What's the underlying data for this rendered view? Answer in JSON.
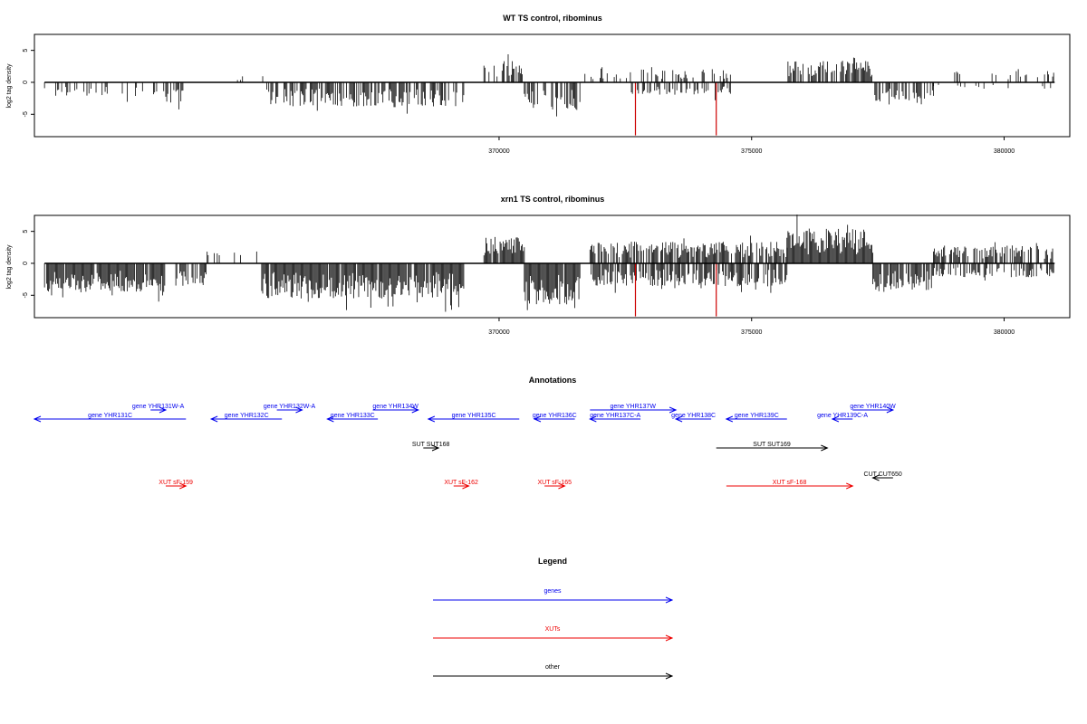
{
  "chart_data": [
    {
      "type": "bar",
      "title": "WT TS control, ribominus",
      "ylabel": "log2 tag density",
      "xlabel": "",
      "xlim": [
        360800,
        381300
      ],
      "ylim": [
        -8.5,
        7.5
      ],
      "x_ticks": [
        370000,
        375000,
        380000
      ],
      "x_tick_labels": [
        "370000",
        "375000",
        "380000"
      ],
      "y_ticks": [
        5,
        0,
        -5
      ],
      "y_tick_labels": [
        "5",
        "0",
        "-5"
      ],
      "baseline_range": [
        361000,
        381000
      ],
      "segments": [
        {
          "range": [
            361000,
            363400
          ],
          "sign": -1,
          "density": 0.35,
          "amplitude": 2.2
        },
        {
          "range": [
            363400,
            363800
          ],
          "sign": -1,
          "density": 0.5,
          "amplitude": 3.2
        },
        {
          "range": [
            364800,
            365400
          ],
          "sign": 1,
          "density": 0.2,
          "amplitude": 1.0
        },
        {
          "range": [
            365400,
            369300
          ],
          "sign": -1,
          "density": 0.55,
          "amplitude": 3.8
        },
        {
          "range": [
            369700,
            370500
          ],
          "sign": 1,
          "density": 0.6,
          "amplitude": 3.4
        },
        {
          "range": [
            370500,
            371600
          ],
          "sign": -1,
          "density": 0.6,
          "amplitude": 4.5
        },
        {
          "range": [
            371600,
            372000
          ],
          "sign": 1,
          "density": 0.3,
          "amplitude": 1.5
        },
        {
          "range": [
            372000,
            372600
          ],
          "sign": 1,
          "density": 0.45,
          "amplitude": 2.4
        },
        {
          "range": [
            372600,
            374600
          ],
          "sign": -1,
          "density": 0.35,
          "amplitude": 2.0
        },
        {
          "range": [
            372800,
            374600
          ],
          "sign": 1,
          "density": 0.35,
          "amplitude": 2.0
        },
        {
          "range": [
            375700,
            377400
          ],
          "sign": 1,
          "density": 0.7,
          "amplitude": 3.4
        },
        {
          "range": [
            377400,
            378600
          ],
          "sign": -1,
          "density": 0.5,
          "amplitude": 3.0
        },
        {
          "range": [
            378600,
            381000
          ],
          "sign": 1,
          "density": 0.15,
          "amplitude": 1.8
        },
        {
          "range": [
            378600,
            381000
          ],
          "sign": -1,
          "density": 0.1,
          "amplitude": 1.0
        }
      ],
      "highlight_bars": [
        {
          "x": 372700,
          "y": -8.3
        },
        {
          "x": 374300,
          "y": -8.3
        }
      ],
      "colors": {
        "bars": "#000000",
        "highlight": "#cc0000"
      }
    },
    {
      "type": "bar",
      "title": "xrn1 TS control, ribominus",
      "ylabel": "log2 tag density",
      "xlabel": "",
      "xlim": [
        360800,
        381300
      ],
      "ylim": [
        -8.5,
        7.5
      ],
      "x_ticks": [
        370000,
        375000,
        380000
      ],
      "x_tick_labels": [
        "370000",
        "375000",
        "380000"
      ],
      "y_ticks": [
        5,
        0,
        -5
      ],
      "y_tick_labels": [
        "5",
        "0",
        "-5"
      ],
      "baseline_range": [
        361000,
        381000
      ],
      "segments": [
        {
          "range": [
            361000,
            363400
          ],
          "sign": -1,
          "density": 0.95,
          "amplitude": 4.5
        },
        {
          "range": [
            363600,
            364200
          ],
          "sign": -1,
          "density": 0.7,
          "amplitude": 3.5
        },
        {
          "range": [
            364200,
            365300
          ],
          "sign": 1,
          "density": 0.2,
          "amplitude": 2.0
        },
        {
          "range": [
            365300,
            369300
          ],
          "sign": -1,
          "density": 0.95,
          "amplitude": 5.5
        },
        {
          "range": [
            369700,
            370500
          ],
          "sign": 1,
          "density": 0.95,
          "amplitude": 4.2
        },
        {
          "range": [
            370500,
            371600
          ],
          "sign": -1,
          "density": 0.98,
          "amplitude": 6.5
        },
        {
          "range": [
            371800,
            375700
          ],
          "sign": 1,
          "density": 0.75,
          "amplitude": 3.4
        },
        {
          "range": [
            371800,
            375700
          ],
          "sign": -1,
          "density": 0.75,
          "amplitude": 3.6
        },
        {
          "range": [
            375700,
            377400
          ],
          "sign": 1,
          "density": 0.98,
          "amplitude": 5.5
        },
        {
          "range": [
            377400,
            378600
          ],
          "sign": -1,
          "density": 0.85,
          "amplitude": 4.5
        },
        {
          "range": [
            378600,
            381000
          ],
          "sign": 1,
          "density": 0.6,
          "amplitude": 2.8
        },
        {
          "range": [
            378600,
            381000
          ],
          "sign": -1,
          "density": 0.5,
          "amplitude": 2.2
        }
      ],
      "highlight_bars": [
        {
          "x": 372700,
          "y": -8.3
        },
        {
          "x": 374300,
          "y": -8.3
        }
      ],
      "colors": {
        "bars": "#000000",
        "highlight": "#cc0000"
      }
    }
  ],
  "annotations": {
    "title": "Annotations",
    "xlim": [
      360800,
      381300
    ],
    "colors": {
      "genes": "#0000ee",
      "XUTs": "#ee0000",
      "other": "#000000"
    },
    "rows": [
      {
        "label": "gene YHR131C",
        "start": 360800,
        "end": 363800,
        "row": 2,
        "strand": "-",
        "category": "genes"
      },
      {
        "label": "gene YHR131W-A",
        "start": 363100,
        "end": 363400,
        "row": 1,
        "strand": "+",
        "category": "genes"
      },
      {
        "label": "gene YHR132C",
        "start": 364300,
        "end": 365700,
        "row": 2,
        "strand": "-",
        "category": "genes"
      },
      {
        "label": "gene YHR132W-A",
        "start": 365600,
        "end": 366100,
        "row": 1,
        "strand": "+",
        "category": "genes"
      },
      {
        "label": "gene YHR133C",
        "start": 366600,
        "end": 367600,
        "row": 2,
        "strand": "-",
        "category": "genes"
      },
      {
        "label": "gene YHR134W",
        "start": 367500,
        "end": 368400,
        "row": 1,
        "strand": "+",
        "category": "genes"
      },
      {
        "label": "gene YHR135C",
        "start": 368600,
        "end": 370400,
        "row": 2,
        "strand": "-",
        "category": "genes"
      },
      {
        "label": "gene YHR136C",
        "start": 370700,
        "end": 371500,
        "row": 2,
        "strand": "-",
        "category": "genes"
      },
      {
        "label": "gene YHR137W",
        "start": 371800,
        "end": 373500,
        "row": 1,
        "strand": "+",
        "category": "genes"
      },
      {
        "label": "gene YHR137C-A",
        "start": 371800,
        "end": 372800,
        "row": 2,
        "strand": "-",
        "category": "genes"
      },
      {
        "label": "gene YHR138C",
        "start": 373500,
        "end": 374200,
        "row": 2,
        "strand": "-",
        "category": "genes"
      },
      {
        "label": "gene YHR139C",
        "start": 374500,
        "end": 375700,
        "row": 2,
        "strand": "-",
        "category": "genes"
      },
      {
        "label": "gene YHR139C-A",
        "start": 376600,
        "end": 377000,
        "row": 2,
        "strand": "-",
        "category": "genes"
      },
      {
        "label": "gene YHR140W",
        "start": 377000,
        "end": 377800,
        "row": 1,
        "strand": "+",
        "category": "genes"
      },
      {
        "label": "SUT SUT168",
        "start": 368500,
        "end": 368800,
        "row": 3,
        "strand": "+",
        "category": "other"
      },
      {
        "label": "SUT SUT169",
        "start": 374300,
        "end": 376500,
        "row": 3,
        "strand": "+",
        "category": "other"
      },
      {
        "label": "CUT CUT650",
        "start": 377400,
        "end": 377800,
        "row": 4,
        "strand": "-",
        "category": "other"
      },
      {
        "label": "XUT sF-159",
        "start": 363400,
        "end": 363800,
        "row": 5,
        "strand": "+",
        "category": "XUTs"
      },
      {
        "label": "XUT sF-162",
        "start": 369100,
        "end": 369400,
        "row": 5,
        "strand": "+",
        "category": "XUTs"
      },
      {
        "label": "XUT sF-165",
        "start": 370900,
        "end": 371300,
        "row": 5,
        "strand": "+",
        "category": "XUTs"
      },
      {
        "label": "XUT sF-168",
        "start": 374500,
        "end": 377000,
        "row": 5,
        "strand": "+",
        "category": "XUTs"
      }
    ]
  },
  "legend": {
    "title": "Legend",
    "items": [
      {
        "label": "genes",
        "color": "#0000ee"
      },
      {
        "label": "XUTs",
        "color": "#ee0000"
      },
      {
        "label": "other",
        "color": "#000000"
      }
    ]
  }
}
